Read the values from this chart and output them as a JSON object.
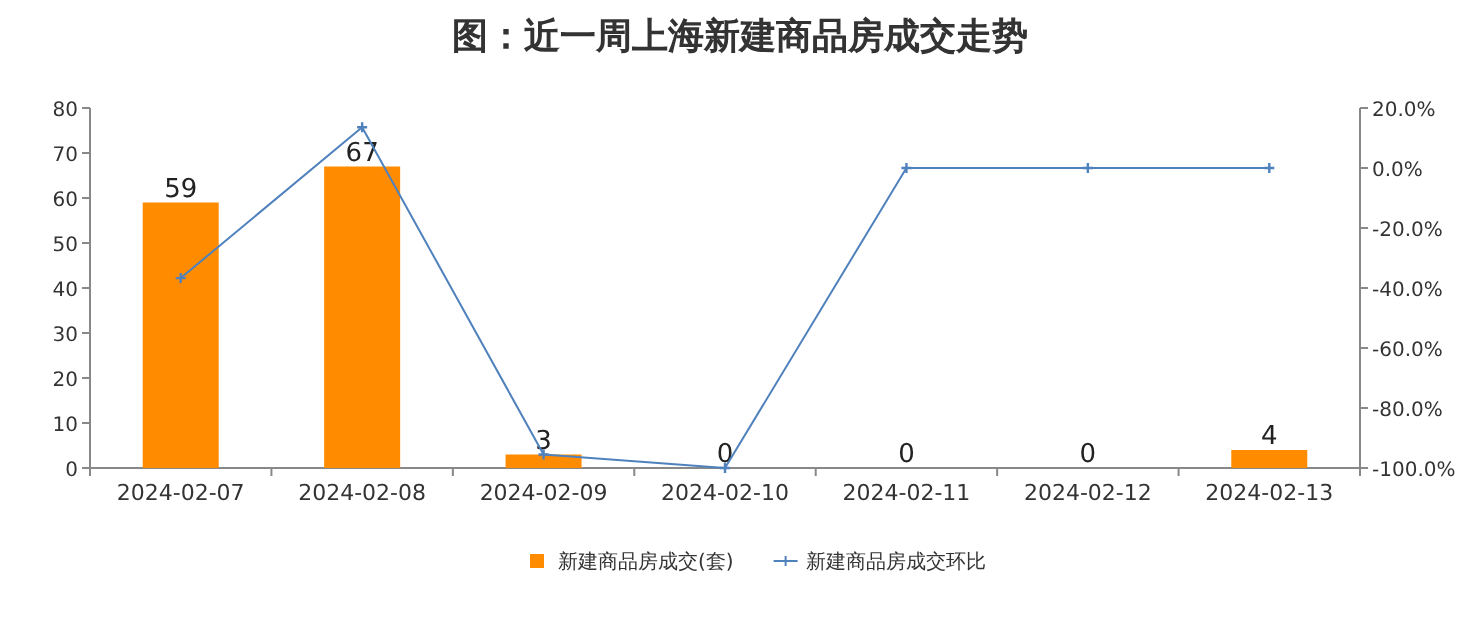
{
  "chart_data": {
    "type": "bar",
    "title": "图：近一周上海新建商品房成交走势",
    "categories": [
      "2024-02-07",
      "2024-02-08",
      "2024-02-09",
      "2024-02-10",
      "2024-02-11",
      "2024-02-12",
      "2024-02-13"
    ],
    "series": [
      {
        "name": "新建商品房成交(套)",
        "color": "#ff8c00",
        "values": [
          59,
          67,
          3,
          0,
          0,
          0,
          4
        ],
        "value_labels": [
          "59",
          "67",
          "3",
          "0",
          "0",
          "0",
          "4"
        ]
      },
      {
        "name": "新建商品房成交环比",
        "type": "line",
        "axis": "y2",
        "color": "#4f81bd",
        "values": [
          -36.7,
          13.6,
          -95.5,
          -100,
          0,
          0,
          0
        ]
      }
    ],
    "ylim": [
      0,
      80
    ],
    "yticks": [
      0,
      10,
      20,
      30,
      40,
      50,
      60,
      70,
      80
    ],
    "y2lim": [
      -100,
      20
    ],
    "y2ticks": [
      {
        "value": 20,
        "label": "20.0%"
      },
      {
        "value": 0,
        "label": "0.0%"
      },
      {
        "value": -20,
        "label": "-20.0%"
      },
      {
        "value": -40,
        "label": "-40.0%"
      },
      {
        "value": -60,
        "label": "-60.0%"
      },
      {
        "value": -80,
        "label": "-80.0%"
      },
      {
        "value": -100,
        "label": "-100.0%"
      }
    ],
    "grid": false,
    "legend": "bottom",
    "marker": "cross"
  }
}
